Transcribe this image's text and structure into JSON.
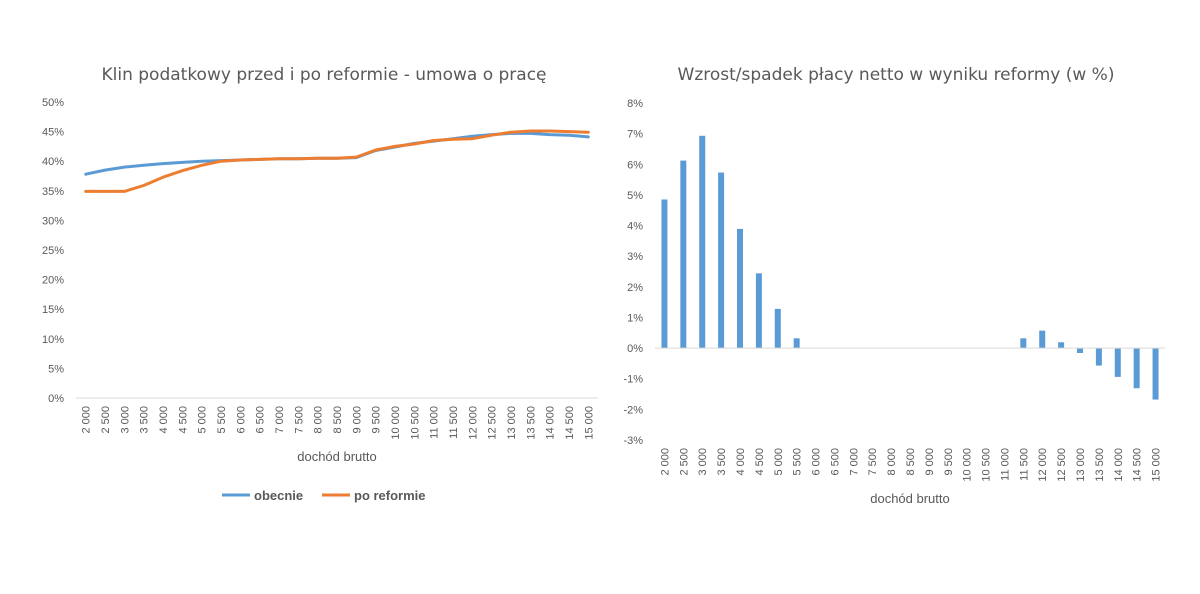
{
  "chart_data": [
    {
      "type": "line",
      "title": "Klin podatkowy przed i po reformie - umowa o pracę",
      "xlabel": "dochód brutto",
      "ylabel": "",
      "ylim": [
        0,
        0.5
      ],
      "yticks": [
        "0%",
        "5%",
        "10%",
        "15%",
        "20%",
        "25%",
        "30%",
        "35%",
        "40%",
        "45%",
        "50%"
      ],
      "categories": [
        "2 000",
        "2 500",
        "3 000",
        "3 500",
        "4 000",
        "4 500",
        "5 000",
        "5 500",
        "6 000",
        "6 500",
        "7 000",
        "7 500",
        "8 000",
        "8 500",
        "9 000",
        "9 500",
        "10 000",
        "10 500",
        "11 000",
        "11 500",
        "12 000",
        "12 500",
        "13 000",
        "13 500",
        "14 000",
        "14 500",
        "15 000"
      ],
      "series": [
        {
          "name": "obecnie",
          "color": "#5B9BD5",
          "values": [
            0.378,
            0.385,
            0.39,
            0.393,
            0.396,
            0.398,
            0.4,
            0.401,
            0.402,
            0.403,
            0.404,
            0.404,
            0.405,
            0.405,
            0.406,
            0.418,
            0.424,
            0.43,
            0.434,
            0.438,
            0.442,
            0.445,
            0.447,
            0.447,
            0.445,
            0.444,
            0.441
          ]
        },
        {
          "name": "po reformie",
          "color": "#ED7D31",
          "values": [
            0.349,
            0.349,
            0.349,
            0.359,
            0.373,
            0.384,
            0.393,
            0.4,
            0.402,
            0.403,
            0.404,
            0.404,
            0.405,
            0.405,
            0.407,
            0.419,
            0.425,
            0.429,
            0.435,
            0.437,
            0.438,
            0.444,
            0.449,
            0.451,
            0.451,
            0.45,
            0.449
          ]
        }
      ],
      "legend": "bottom",
      "grid": false
    },
    {
      "type": "bar",
      "title": "Wzrost/spadek płacy netto w wyniku reformy (w %)",
      "xlabel": "dochód brutto",
      "ylabel": "",
      "ylim": [
        -0.03,
        0.08
      ],
      "yticks": [
        "-3%",
        "-2%",
        "-1%",
        "0%",
        "1%",
        "2%",
        "3%",
        "4%",
        "5%",
        "6%",
        "7%",
        "8%"
      ],
      "categories": [
        "2 000",
        "2 500",
        "3 000",
        "3 500",
        "4 000",
        "4 500",
        "5 000",
        "5 500",
        "6 000",
        "6 500",
        "7 000",
        "7 500",
        "8 000",
        "8 500",
        "9 000",
        "9 500",
        "10 000",
        "10 500",
        "11 000",
        "11 500",
        "12 000",
        "12 500",
        "13 000",
        "13 500",
        "14 000",
        "14 500",
        "15 000"
      ],
      "series": [
        {
          "color": "#5B9BD5",
          "values": [
            0.0485,
            0.0612,
            0.0693,
            0.0573,
            0.0389,
            0.0244,
            0.0128,
            0.0032,
            0,
            0,
            0,
            0,
            0,
            0,
            0,
            0,
            0,
            0,
            0,
            0.0032,
            0.0057,
            0.0019,
            -0.0016,
            -0.0057,
            -0.0094,
            -0.0131,
            -0.0168
          ]
        }
      ],
      "grid": false
    }
  ]
}
